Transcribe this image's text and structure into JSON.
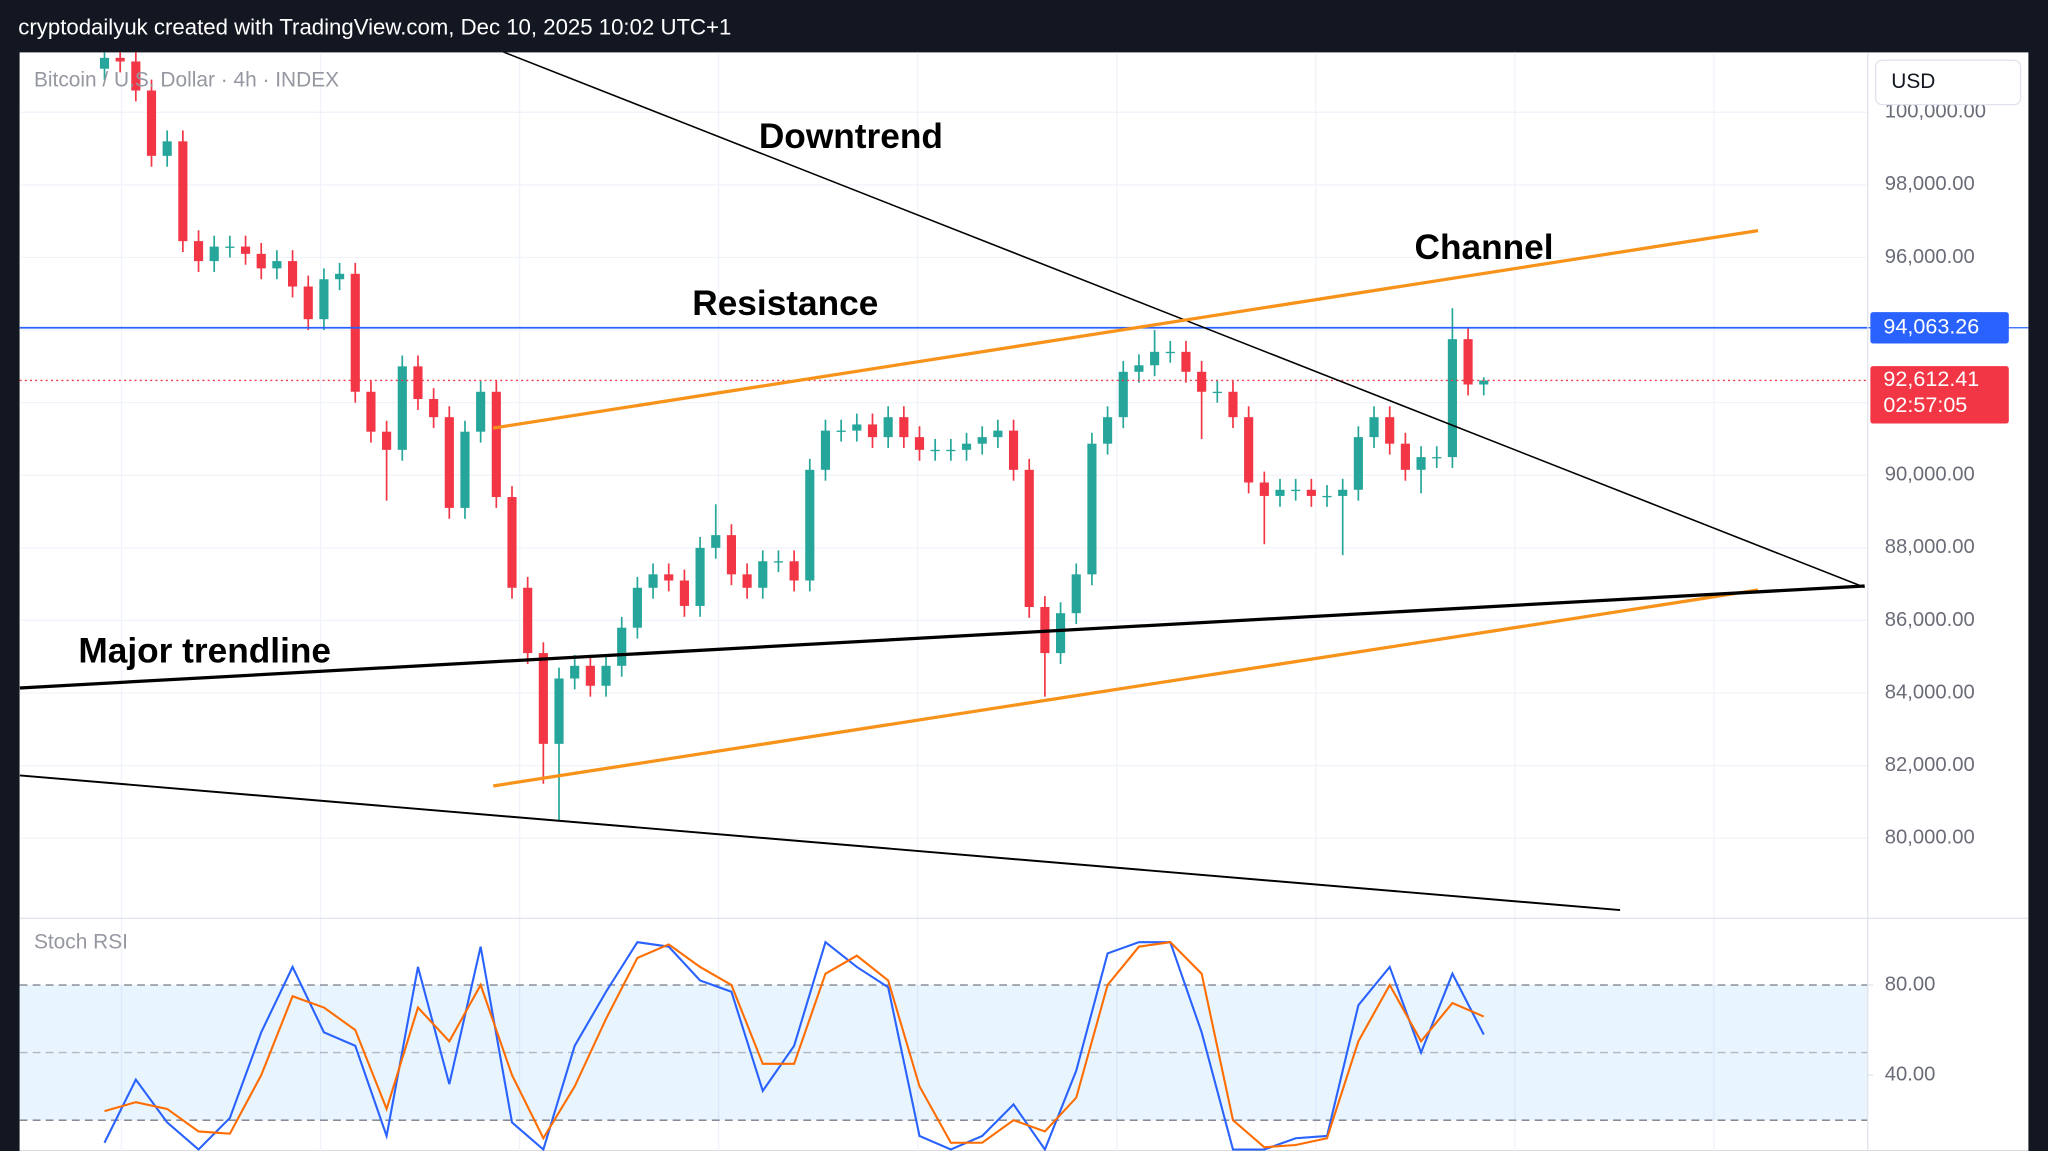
{
  "header": {
    "text": "cryptodailyuk created with TradingView.com, Dec 10, 2025 10:02 UTC+1"
  },
  "chart_data": [
    {
      "type": "candlestick",
      "title": "Bitcoin / U.S. Dollar · 4h · INDEX",
      "currency": "USD",
      "up_color": "#26a69a",
      "down_color": "#f23645",
      "open": [
        101200,
        101500,
        101400,
        100600,
        98800,
        99200,
        96450,
        95900,
        96300,
        96300,
        96100,
        95700,
        95900,
        95200,
        94300,
        95400,
        95550,
        92300,
        91200,
        90700,
        93000,
        92100,
        91600,
        89100,
        91200,
        92300,
        89400,
        86900,
        85100,
        82600,
        84400,
        84750,
        84200,
        84750,
        85800,
        86900,
        87270,
        87100,
        86400,
        88000,
        88350,
        87270,
        86900,
        87630,
        87630,
        87100,
        90150,
        91230,
        91230,
        91400,
        91050,
        91600,
        91050,
        90700,
        90700,
        90700,
        90870,
        91050,
        91230,
        90150,
        86370,
        85100,
        86200,
        87270,
        90870,
        91600,
        92850,
        93030,
        93400,
        93400,
        92850,
        92300,
        92300,
        91600,
        89800,
        89430,
        89600,
        89600,
        89430,
        89430,
        89600,
        91050,
        91600,
        90870,
        90150,
        90500,
        90500,
        93750,
        92500
      ],
      "high": [
        101800,
        101800,
        101700,
        100900,
        99500,
        99500,
        96750,
        96600,
        96600,
        96600,
        96400,
        96200,
        96200,
        95500,
        95700,
        95850,
        95850,
        92600,
        91500,
        93300,
        93300,
        92400,
        91900,
        91500,
        92600,
        92600,
        89700,
        87200,
        85400,
        84700,
        85050,
        85050,
        85050,
        86100,
        87200,
        87570,
        87570,
        87400,
        88300,
        89200,
        88650,
        87570,
        87930,
        87930,
        87930,
        90450,
        91530,
        91530,
        91700,
        91700,
        91900,
        91900,
        91350,
        91000,
        91000,
        91170,
        91350,
        91530,
        91530,
        90450,
        86670,
        86500,
        87570,
        91170,
        91900,
        93150,
        93330,
        94000,
        93700,
        93700,
        93150,
        92600,
        92600,
        91900,
        90100,
        89900,
        89900,
        89900,
        89730,
        89900,
        91350,
        91900,
        91900,
        91170,
        90800,
        90800,
        94600,
        94050,
        92700
      ],
      "low": [
        100900,
        101100,
        100300,
        98500,
        98500,
        96150,
        95600,
        95600,
        96000,
        95800,
        95400,
        95400,
        94900,
        94000,
        94000,
        95100,
        92000,
        90900,
        89300,
        90400,
        91800,
        91300,
        88800,
        88800,
        90900,
        89100,
        86600,
        84800,
        81500,
        80500,
        84100,
        83900,
        83900,
        84450,
        85500,
        86600,
        86800,
        86100,
        86100,
        87700,
        86970,
        86600,
        86600,
        87330,
        86800,
        86800,
        89850,
        90930,
        90930,
        90750,
        90750,
        90750,
        90400,
        90400,
        90400,
        90400,
        90570,
        90750,
        89850,
        86070,
        83900,
        84800,
        85900,
        86970,
        90570,
        91300,
        92550,
        92730,
        93100,
        92550,
        91000,
        92000,
        91300,
        89500,
        88100,
        89130,
        89300,
        89130,
        89130,
        87800,
        89300,
        90750,
        90570,
        89850,
        89500,
        90200,
        90200,
        92200,
        92200
      ],
      "close": [
        101500,
        101400,
        100600,
        98800,
        99200,
        96450,
        95900,
        96300,
        96300,
        96100,
        95700,
        95900,
        95200,
        94300,
        95400,
        95550,
        92300,
        91200,
        90700,
        93000,
        92100,
        91600,
        89100,
        91200,
        92300,
        89400,
        86900,
        85100,
        82600,
        84400,
        84750,
        84200,
        84750,
        85800,
        86900,
        87270,
        87100,
        86400,
        88000,
        88350,
        87270,
        86900,
        87630,
        87630,
        87100,
        90150,
        91230,
        91230,
        91400,
        91050,
        91600,
        91050,
        90700,
        90700,
        90700,
        90870,
        91050,
        91230,
        90150,
        86370,
        85100,
        86200,
        87270,
        90870,
        91600,
        92850,
        93030,
        93400,
        93400,
        92850,
        92300,
        92300,
        91600,
        89800,
        89430,
        89600,
        89600,
        89430,
        89430,
        89600,
        91050,
        91600,
        90870,
        90150,
        90500,
        90500,
        93750,
        92500,
        92612
      ],
      "ylim": [
        77900,
        101650
      ],
      "yticks": [
        {
          "value": 80000,
          "label": "80,000.00"
        },
        {
          "value": 82000,
          "label": "82,000.00"
        },
        {
          "value": 84000,
          "label": "84,000.00"
        },
        {
          "value": 86000,
          "label": "86,000.00"
        },
        {
          "value": 88000,
          "label": "88,000.00"
        },
        {
          "value": 90000,
          "label": "90,000.00"
        },
        {
          "value": 92000,
          "label": "92,000.00"
        },
        {
          "value": 94000,
          "label": "94,000.00"
        },
        {
          "value": 96000,
          "label": "96,000.00"
        },
        {
          "value": 98000,
          "label": "98,000.00"
        },
        {
          "value": 100000,
          "label": "100,000.00"
        }
      ],
      "grid": true,
      "resistance": {
        "value": 94063.26,
        "label": "94,063.26",
        "color": "#2962ff"
      },
      "last_price": {
        "value": 92612.41,
        "label": "92,612.41",
        "countdown": "02:57:05",
        "color": "#f23645"
      },
      "lines": [
        {
          "color": "#000000",
          "width": 1.2,
          "points": [
            [
              25.4,
              101670
            ],
            [
              112.3,
              86910
            ]
          ]
        },
        {
          "color": "#f7931a",
          "width": 2.5,
          "points": [
            [
              24.8,
              91300
            ],
            [
              105.5,
              96740
            ]
          ]
        },
        {
          "color": "#f7931a",
          "width": 2.5,
          "points": [
            [
              24.8,
              81440
            ],
            [
              105.5,
              86840
            ]
          ]
        },
        {
          "color": "#000000",
          "width": 2.5,
          "points": [
            [
              -5.4,
              84140
            ],
            [
              112.3,
              86950
            ]
          ]
        },
        {
          "color": "#000000",
          "width": 1.5,
          "points": [
            [
              -5.4,
              81730
            ],
            [
              96.7,
              78020
            ]
          ]
        }
      ],
      "annotations": [
        "Downtrend",
        "Resistance",
        "Channel",
        "Major trendline"
      ]
    },
    {
      "type": "line",
      "title": "Stoch RSI",
      "series": [
        {
          "color": "#2962ff",
          "values": [
            10,
            38,
            19,
            7,
            21,
            59,
            88,
            59,
            53,
            13,
            88,
            36,
            97,
            19,
            7,
            53,
            77,
            99,
            97,
            82,
            77,
            33,
            53,
            99,
            88,
            79,
            13,
            7,
            13,
            27,
            7,
            42,
            94,
            99,
            99,
            59,
            7,
            7,
            12,
            13,
            71,
            88,
            50,
            85,
            58
          ]
        },
        {
          "color": "#ff6d00",
          "values": [
            24,
            28,
            25,
            15,
            14,
            40,
            75,
            70,
            60,
            25,
            70,
            55,
            80,
            40,
            12,
            35,
            65,
            92,
            98,
            88,
            80,
            45,
            45,
            85,
            93,
            82,
            35,
            10,
            10,
            20,
            15,
            30,
            80,
            97,
            99,
            85,
            20,
            8,
            9,
            12,
            55,
            80,
            55,
            72,
            66
          ]
        }
      ],
      "ylim": [
        6.4,
        108.4
      ],
      "yticks": [
        {
          "value": 80,
          "label": "80.00"
        },
        {
          "value": 40,
          "label": "40.00"
        }
      ],
      "band": [
        20,
        80
      ],
      "midline": 50
    }
  ]
}
